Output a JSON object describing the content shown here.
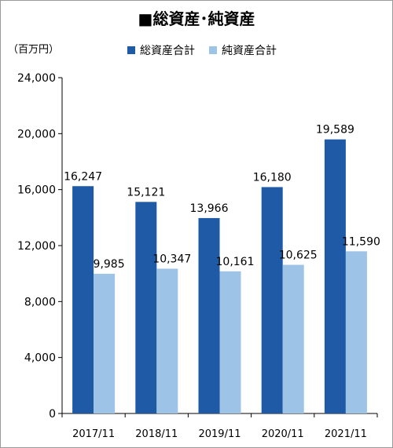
{
  "chart_data": {
    "type": "bar",
    "title": "■総資産･純資産",
    "unit_label": "（百万円）",
    "categories": [
      "2017/11",
      "2018/11",
      "2019/11",
      "2020/11",
      "2021/11"
    ],
    "series": [
      {
        "name": "総資産合計",
        "color": "#1f5aa6",
        "values": [
          16247,
          15121,
          13966,
          16180,
          19589
        ]
      },
      {
        "name": "純資産合計",
        "color": "#9dc3e6",
        "values": [
          9985,
          10347,
          10161,
          10625,
          11590
        ]
      }
    ],
    "data_labels": [
      [
        "16,247",
        "15,121",
        "13,966",
        "16,180",
        "19,589"
      ],
      [
        "9,985",
        "10,347",
        "10,161",
        "10,625",
        "11,590"
      ]
    ],
    "ylim": [
      0,
      24000
    ],
    "yticks": [
      0,
      4000,
      8000,
      12000,
      16000,
      20000,
      24000
    ],
    "ytick_labels": [
      "0",
      "4,000",
      "8,000",
      "12,000",
      "16,000",
      "20,000",
      "24,000"
    ],
    "legend_position": "top"
  }
}
